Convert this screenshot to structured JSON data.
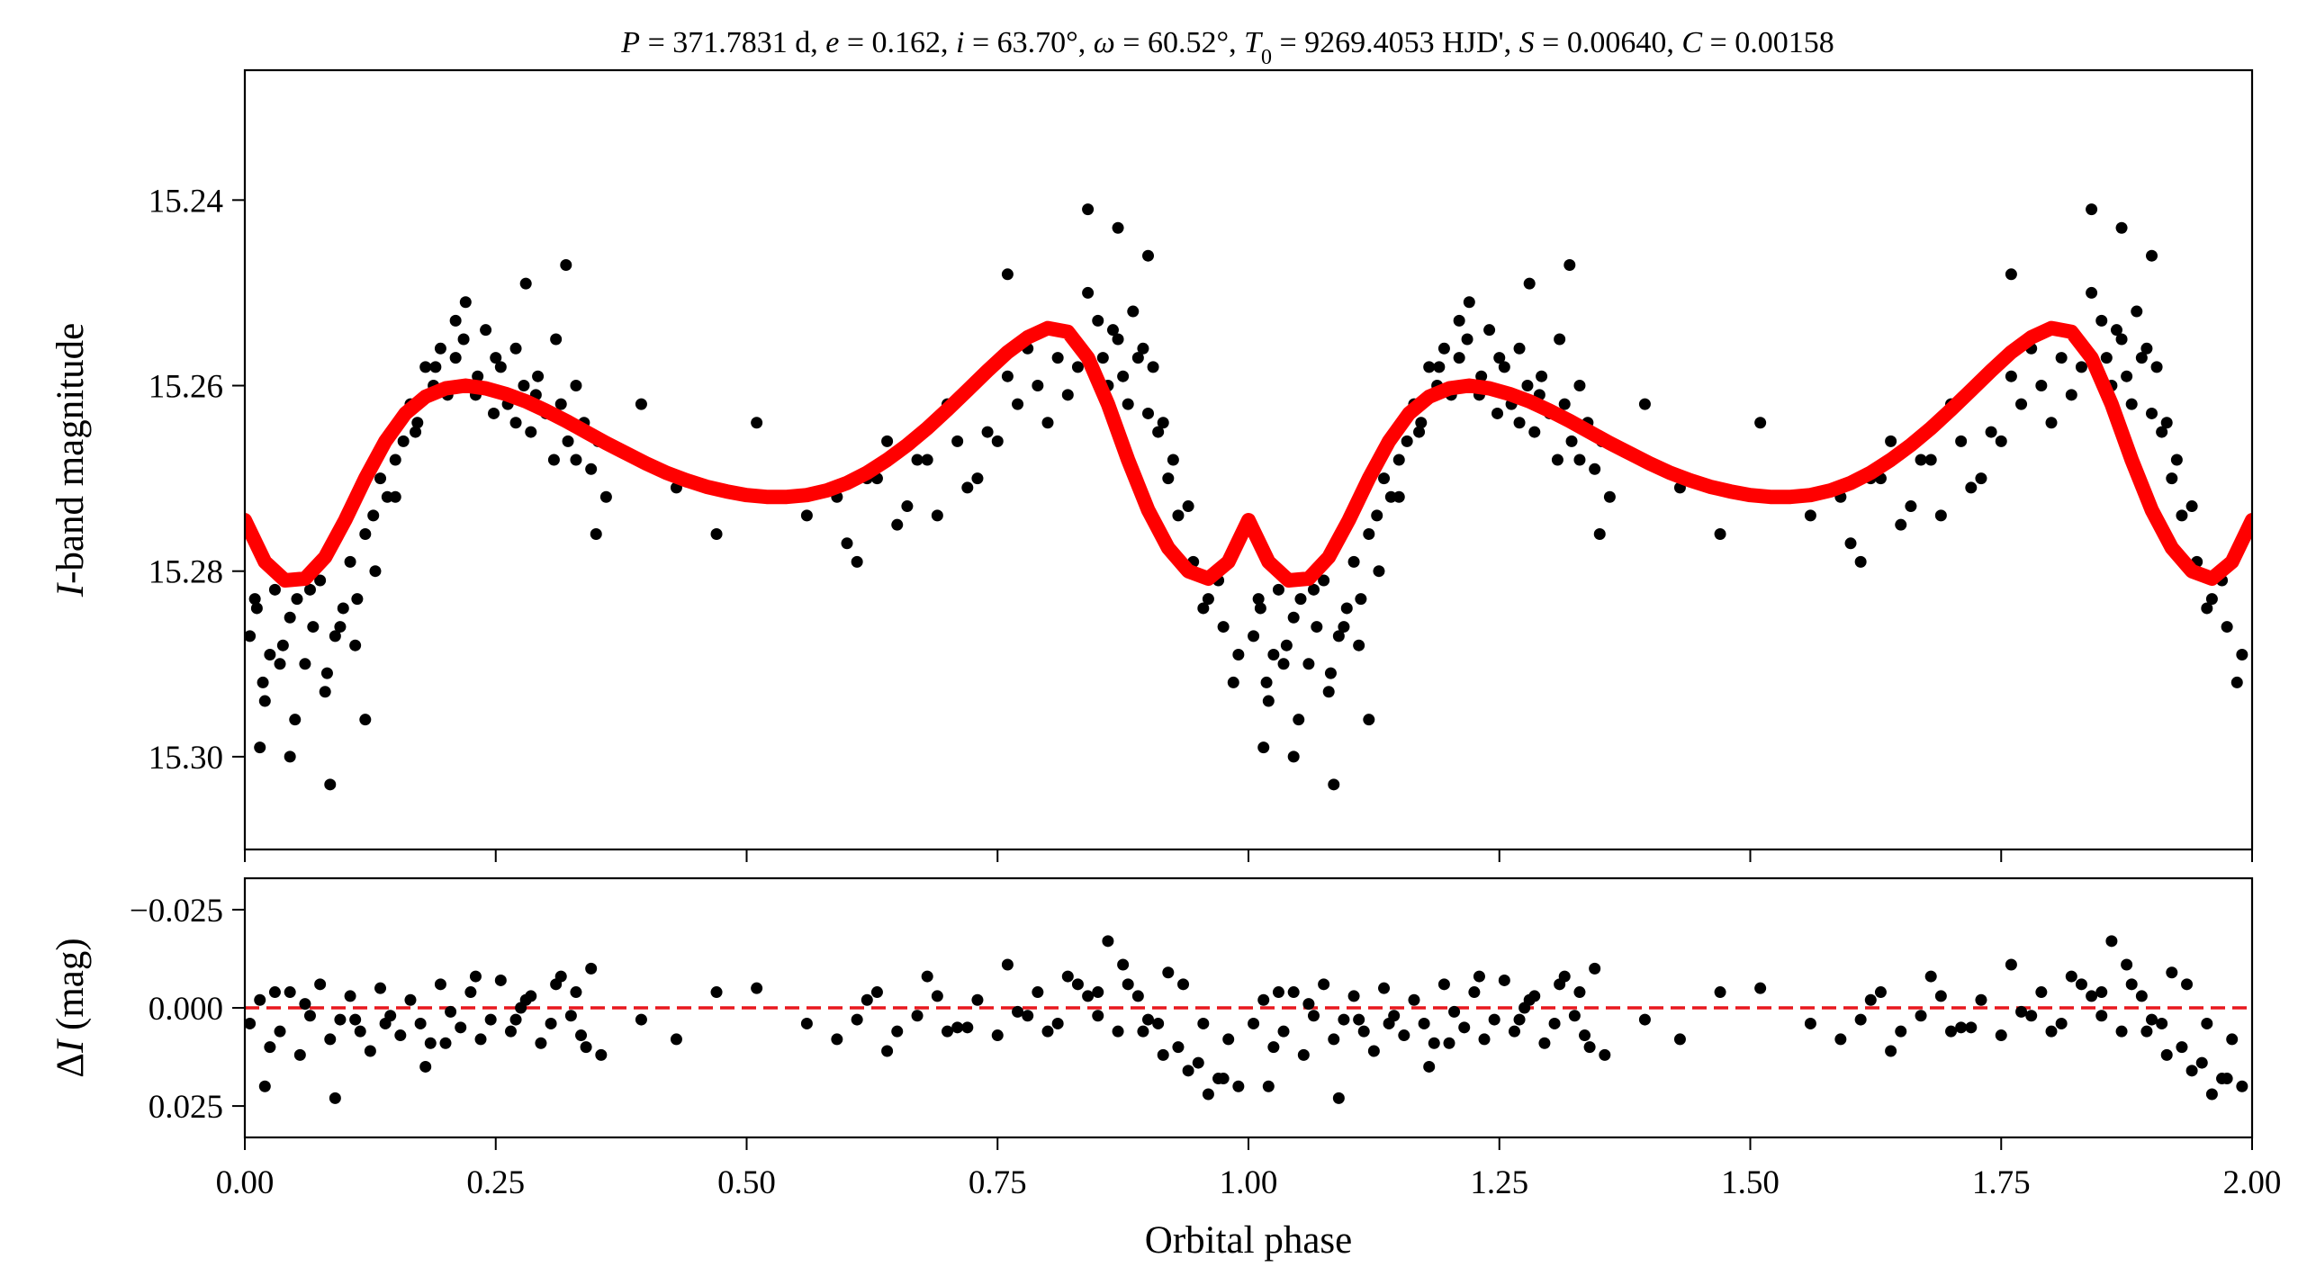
{
  "chart_data": [
    {
      "type": "scatter",
      "panel": "top",
      "title": "P = 371.7831 d, e = 0.162, i = 63.70°, ω = 60.52°, T₀ = 9269.4053 HJD', S = 0.00640, C = 0.00158",
      "title_parts": [
        {
          "t": "P",
          "it": true
        },
        {
          "t": " = 371.7831 d, "
        },
        {
          "t": "e",
          "it": true
        },
        {
          "t": " = 0.162, "
        },
        {
          "t": "i",
          "it": true
        },
        {
          "t": " = 63.70°, "
        },
        {
          "t": "ω",
          "it": true
        },
        {
          "t": " = 60.52°, "
        },
        {
          "t": "T",
          "it": true
        },
        {
          "t": "0",
          "sub": true
        },
        {
          "t": " = 9269.4053 HJD', "
        },
        {
          "t": "S",
          "it": true
        },
        {
          "t": " = 0.00640, "
        },
        {
          "t": "C",
          "it": true
        },
        {
          "t": " = 0.00158"
        }
      ],
      "xlabel": "",
      "ylabel_italic": "I",
      "ylabel_rest": "-band magnitude",
      "xlim": [
        0.0,
        2.0
      ],
      "ylim": [
        15.31,
        15.226
      ],
      "y_inverted": true,
      "yticks": [
        15.24,
        15.26,
        15.28,
        15.3
      ],
      "ytick_labels": [
        "15.24",
        "15.26",
        "15.28",
        "15.30"
      ],
      "xticks": [
        0.0,
        0.25,
        0.5,
        0.75,
        1.0,
        1.25,
        1.5,
        1.75,
        2.0
      ],
      "series": [
        {
          "name": "observations",
          "kind": "points",
          "color": "#000000",
          "x": [
            0.005,
            0.012,
            0.018,
            0.025,
            0.03,
            0.038,
            0.045,
            0.052,
            0.06,
            0.068,
            0.075,
            0.082,
            0.09,
            0.098,
            0.105,
            0.112,
            0.12,
            0.128,
            0.135,
            0.142,
            0.15,
            0.158,
            0.165,
            0.172,
            0.18,
            0.188,
            0.195,
            0.202,
            0.21,
            0.218,
            0.225,
            0.232,
            0.24,
            0.248,
            0.255,
            0.262,
            0.27,
            0.278,
            0.285,
            0.292,
            0.3,
            0.308,
            0.315,
            0.322,
            0.33,
            0.338,
            0.345,
            0.352,
            0.36,
            0.395,
            0.43,
            0.47,
            0.51,
            0.56,
            0.59,
            0.61,
            0.63,
            0.65,
            0.67,
            0.69,
            0.71,
            0.73,
            0.75,
            0.77,
            0.79,
            0.81,
            0.83,
            0.85,
            0.86,
            0.87,
            0.88,
            0.89,
            0.9,
            0.91,
            0.92,
            0.93,
            0.945,
            0.96,
            0.975,
            0.99,
            0.01,
            0.02,
            0.035,
            0.05,
            0.065,
            0.08,
            0.095,
            0.11,
            0.13,
            0.15,
            0.17,
            0.19,
            0.21,
            0.23,
            0.25,
            0.27,
            0.29,
            0.31,
            0.33,
            0.35,
            0.6,
            0.62,
            0.64,
            0.66,
            0.68,
            0.7,
            0.72,
            0.74,
            0.76,
            0.78,
            0.8,
            0.82,
            0.84,
            0.855,
            0.865,
            0.875,
            0.885,
            0.895,
            0.905,
            0.915,
            0.925,
            0.94,
            0.955,
            0.97,
            0.985,
            0.015,
            0.045,
            0.085,
            0.12,
            0.22,
            0.28,
            0.32,
            0.76,
            0.84,
            0.87,
            0.9
          ],
          "y": [
            15.287,
            15.284,
            15.292,
            15.289,
            15.282,
            15.288,
            15.285,
            15.283,
            15.29,
            15.286,
            15.281,
            15.291,
            15.287,
            15.284,
            15.279,
            15.283,
            15.276,
            15.274,
            15.27,
            15.272,
            15.268,
            15.266,
            15.262,
            15.264,
            15.258,
            15.26,
            15.256,
            15.261,
            15.257,
            15.255,
            15.26,
            15.259,
            15.254,
            15.263,
            15.258,
            15.262,
            15.256,
            15.26,
            15.265,
            15.259,
            15.263,
            15.268,
            15.262,
            15.266,
            15.26,
            15.264,
            15.269,
            15.266,
            15.272,
            15.262,
            15.271,
            15.276,
            15.264,
            15.274,
            15.272,
            15.279,
            15.27,
            15.275,
            15.268,
            15.274,
            15.266,
            15.27,
            15.266,
            15.262,
            15.26,
            15.257,
            15.258,
            15.253,
            15.26,
            15.255,
            15.262,
            15.257,
            15.263,
            15.265,
            15.27,
            15.274,
            15.279,
            15.283,
            15.286,
            15.289,
            15.283,
            15.294,
            15.29,
            15.296,
            15.282,
            15.293,
            15.286,
            15.288,
            15.28,
            15.272,
            15.265,
            15.258,
            15.253,
            15.261,
            15.257,
            15.264,
            15.261,
            15.255,
            15.268,
            15.276,
            15.277,
            15.27,
            15.266,
            15.273,
            15.268,
            15.262,
            15.271,
            15.265,
            15.259,
            15.256,
            15.264,
            15.261,
            15.25,
            15.257,
            15.254,
            15.259,
            15.252,
            15.256,
            15.258,
            15.264,
            15.268,
            15.273,
            15.284,
            15.281,
            15.292,
            15.299,
            15.3,
            15.303,
            15.296,
            15.251,
            15.249,
            15.247,
            15.248,
            15.241,
            15.243,
            15.246
          ]
        },
        {
          "name": "model",
          "kind": "line",
          "color": "#ff0000",
          "x": [
            0.0,
            0.02,
            0.04,
            0.06,
            0.08,
            0.1,
            0.12,
            0.14,
            0.16,
            0.18,
            0.2,
            0.22,
            0.24,
            0.26,
            0.28,
            0.3,
            0.32,
            0.34,
            0.36,
            0.38,
            0.4,
            0.42,
            0.44,
            0.46,
            0.48,
            0.5,
            0.52,
            0.54,
            0.56,
            0.58,
            0.6,
            0.62,
            0.64,
            0.66,
            0.68,
            0.7,
            0.72,
            0.74,
            0.76,
            0.78,
            0.8,
            0.82,
            0.84,
            0.86,
            0.88,
            0.9,
            0.92,
            0.94,
            0.96,
            0.98,
            1.0
          ],
          "y": [
            15.2745,
            15.279,
            15.281,
            15.2808,
            15.2785,
            15.2745,
            15.27,
            15.266,
            15.263,
            15.2612,
            15.2603,
            15.26,
            15.2603,
            15.2609,
            15.2617,
            15.2627,
            15.2638,
            15.265,
            15.2662,
            15.2673,
            15.2684,
            15.2694,
            15.2702,
            15.2709,
            15.2714,
            15.2718,
            15.272,
            15.272,
            15.2718,
            15.2713,
            15.2705,
            15.2694,
            15.268,
            15.2664,
            15.2646,
            15.2626,
            15.2605,
            15.2584,
            15.2564,
            15.2548,
            15.2538,
            15.2542,
            15.257,
            15.262,
            15.268,
            15.2734,
            15.2775,
            15.28,
            15.2808,
            15.279,
            15.2745
          ]
        }
      ]
    },
    {
      "type": "scatter",
      "panel": "bottom",
      "xlabel": "Orbital phase",
      "ylabel_prefix": "Δ",
      "ylabel_italic": "I",
      "ylabel_rest": " (mag)",
      "xlim": [
        0.0,
        2.0
      ],
      "ylim": [
        0.033,
        -0.033
      ],
      "y_inverted": true,
      "yticks": [
        -0.025,
        0.0,
        0.025
      ],
      "ytick_labels": [
        "−0.025",
        "0.000",
        "0.025"
      ],
      "xticks": [
        0.0,
        0.25,
        0.5,
        0.75,
        1.0,
        1.25,
        1.5,
        1.75,
        2.0
      ],
      "xtick_labels": [
        "0.00",
        "0.25",
        "0.50",
        "0.75",
        "1.00",
        "1.25",
        "1.50",
        "1.75",
        "2.00"
      ],
      "reference_line": {
        "y": 0.0,
        "color": "#e8181e",
        "style": "dashed"
      },
      "series": [
        {
          "name": "residuals",
          "kind": "points",
          "color": "#000000",
          "x": [
            0.005,
            0.015,
            0.025,
            0.035,
            0.045,
            0.055,
            0.065,
            0.075,
            0.085,
            0.095,
            0.105,
            0.115,
            0.125,
            0.135,
            0.145,
            0.155,
            0.165,
            0.175,
            0.185,
            0.195,
            0.205,
            0.215,
            0.225,
            0.235,
            0.245,
            0.255,
            0.265,
            0.275,
            0.285,
            0.295,
            0.305,
            0.315,
            0.325,
            0.335,
            0.345,
            0.355,
            0.395,
            0.43,
            0.47,
            0.51,
            0.56,
            0.59,
            0.61,
            0.63,
            0.65,
            0.67,
            0.69,
            0.71,
            0.73,
            0.75,
            0.77,
            0.79,
            0.81,
            0.83,
            0.85,
            0.87,
            0.89,
            0.91,
            0.93,
            0.95,
            0.97,
            0.99,
            0.02,
            0.06,
            0.09,
            0.14,
            0.18,
            0.23,
            0.27,
            0.31,
            0.34,
            0.62,
            0.68,
            0.72,
            0.76,
            0.8,
            0.84,
            0.86,
            0.88,
            0.9,
            0.92,
            0.94,
            0.96,
            0.98,
            0.03,
            0.11,
            0.2,
            0.28,
            0.33,
            0.64,
            0.7,
            0.78,
            0.82,
            0.85,
            0.875,
            0.895,
            0.915,
            0.935,
            0.955,
            0.975
          ],
          "y": [
            0.004,
            -0.002,
            0.01,
            0.006,
            -0.004,
            0.012,
            0.002,
            -0.006,
            0.008,
            0.003,
            -0.003,
            0.006,
            0.011,
            -0.005,
            0.002,
            0.007,
            -0.002,
            0.004,
            0.009,
            -0.006,
            0.001,
            0.005,
            -0.004,
            0.008,
            0.003,
            -0.007,
            0.006,
            0.0,
            -0.003,
            0.009,
            0.004,
            -0.008,
            0.002,
            0.007,
            -0.01,
            0.012,
            0.003,
            0.008,
            -0.004,
            -0.005,
            0.004,
            0.008,
            0.003,
            -0.004,
            0.006,
            0.002,
            -0.003,
            0.005,
            -0.002,
            0.007,
            0.001,
            -0.004,
            0.004,
            -0.006,
            0.002,
            0.006,
            -0.003,
            0.004,
            0.01,
            0.014,
            0.018,
            0.02,
            0.02,
            -0.001,
            0.023,
            0.004,
            0.015,
            -0.008,
            0.003,
            -0.006,
            0.01,
            -0.002,
            -0.008,
            0.005,
            -0.011,
            0.006,
            -0.003,
            -0.017,
            -0.006,
            0.003,
            -0.009,
            0.016,
            0.022,
            0.008,
            -0.004,
            0.003,
            0.009,
            -0.002,
            -0.004,
            0.011,
            0.006,
            0.002,
            -0.008,
            -0.004,
            -0.011,
            0.006,
            0.012,
            -0.006,
            0.004,
            0.018
          ]
        }
      ]
    }
  ]
}
